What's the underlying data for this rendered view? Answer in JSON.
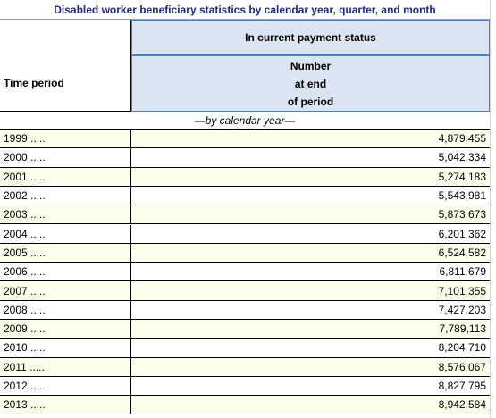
{
  "title": "Disabled worker beneficiary statistics by calendar year, quarter, and month",
  "header": {
    "time_period": "Time period",
    "status": "In current payment status",
    "number": [
      "Number",
      "at end",
      "of period"
    ]
  },
  "section": "—by calendar year—",
  "rows": [
    [
      "1999 .....",
      "4,879,455"
    ],
    [
      "2000 .....",
      "5,042,334"
    ],
    [
      "2001 .....",
      "5,274,183"
    ],
    [
      "2002 .....",
      "5,543,981"
    ],
    [
      "2003 .....",
      "5,873,673"
    ],
    [
      "2004 .....",
      "6,201,362"
    ],
    [
      "2005 .....",
      "6,524,582"
    ],
    [
      "2006 .....",
      "6,811,679"
    ],
    [
      "2007 .....",
      "7,101,355"
    ],
    [
      "2008 .....",
      "7,427,203"
    ],
    [
      "2009 .....",
      "7,789,113"
    ],
    [
      "2010 .....",
      "8,204,710"
    ],
    [
      "2011 .....",
      "8,576,067"
    ],
    [
      "2012 .....",
      "8,827,795"
    ],
    [
      "2013 .....",
      "8,942,584"
    ]
  ]
}
